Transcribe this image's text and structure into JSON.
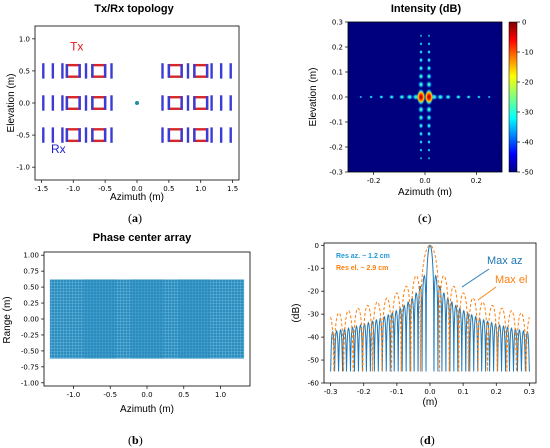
{
  "captions": {
    "a": "a",
    "b": "b",
    "c": "c",
    "d": "d"
  },
  "chart_data": [
    {
      "id": "a",
      "type": "scatter",
      "title": "Tx/Rx topology",
      "xlabel": "Azimuth (m)",
      "ylabel": "Elevation (m)",
      "xlim": [
        -1.6,
        1.6
      ],
      "ylim": [
        -1.2,
        1.2
      ],
      "xticks": [
        "-1.5",
        "-1.0",
        "-0.5",
        "0.0",
        "0.5",
        "1.0",
        "1.5"
      ],
      "yticks": [
        "1.0",
        "0.5",
        "0.0",
        "-0.5",
        "-1.0"
      ],
      "annotations": [
        {
          "text": "Tx",
          "x": -1.05,
          "y": 0.82,
          "color": "#e41a1c"
        },
        {
          "text": "Rx",
          "x": -1.35,
          "y": -0.78,
          "color": "#2020d0"
        }
      ],
      "tx_color": "#d62728",
      "rx_color": "#3b3bd6",
      "center_color": "#1f8fa0",
      "tx_columns": [
        -1.0,
        -0.6,
        0.6,
        1.0
      ],
      "rx_columns": [
        -1.47,
        -1.32,
        -1.17,
        -0.8,
        -0.4,
        0.4,
        0.8,
        1.17,
        1.32,
        1.47
      ],
      "rows": [
        0.5,
        0.0,
        -0.5
      ],
      "center_point": [
        0,
        0
      ]
    },
    {
      "id": "b",
      "type": "heatmap",
      "title": "Phase center array",
      "xlabel": "Azimuth (m)",
      "ylabel": "Range (m)",
      "xlim": [
        -1.4,
        1.4
      ],
      "ylim": [
        -1.05,
        1.05
      ],
      "xticks": [
        "-1.0",
        "-0.5",
        "0.0",
        "0.5",
        "1.0"
      ],
      "yticks": [
        "1.00",
        "0.75",
        "0.50",
        "0.25",
        "0.00",
        "-0.25",
        "-0.50",
        "-0.75",
        "-1.00"
      ],
      "fill_color": "#2b8cbe",
      "extent_x": [
        -1.32,
        1.32
      ],
      "extent_y": [
        -0.62,
        0.62
      ]
    },
    {
      "id": "c",
      "type": "heatmap",
      "title": "Intensity (dB)",
      "xlabel": "Azimuth (m)",
      "ylabel": "Elevation (m)",
      "xlim": [
        -0.3,
        0.3
      ],
      "ylim": [
        -0.3,
        0.3
      ],
      "xticks": [
        "-0.2",
        "0.0",
        "0.2"
      ],
      "yticks": [
        "0.3",
        "0.2",
        "0.1",
        "0.0",
        "-0.1",
        "-0.2",
        "-0.3"
      ],
      "colorbar_ticks": [
        "0",
        "-10",
        "-20",
        "-30",
        "-40",
        "-50"
      ],
      "colorbar_range": [
        -50,
        0
      ],
      "colormap": "jet"
    },
    {
      "id": "d",
      "type": "line",
      "xlabel": "(m)",
      "ylabel": "(dB)",
      "xlim": [
        -0.32,
        0.32
      ],
      "ylim": [
        -60,
        1
      ],
      "xticks": [
        "-0.3",
        "-0.2",
        "-0.1",
        "0.0",
        "0.1",
        "0.2",
        "0.3"
      ],
      "yticks": [
        "0",
        "-10",
        "-20",
        "-30",
        "-40",
        "-50",
        "-60"
      ],
      "annotations": [
        {
          "text": "Res az. ~ 1.2 cm",
          "color": "#1f9ad6"
        },
        {
          "text": "Res el. ~ 2.9 cm",
          "color": "#ff7f0e"
        },
        {
          "text": "Max az",
          "color": "#1f77b4"
        },
        {
          "text": "Max el",
          "color": "#ff7f0e"
        }
      ],
      "series": [
        {
          "name": "Max az",
          "color": "#1f77b4",
          "style": "solid",
          "sinc_width": 0.012
        },
        {
          "name": "Max el",
          "color": "#ff7f0e",
          "style": "dashed",
          "sinc_width": 0.029
        }
      ]
    }
  ]
}
